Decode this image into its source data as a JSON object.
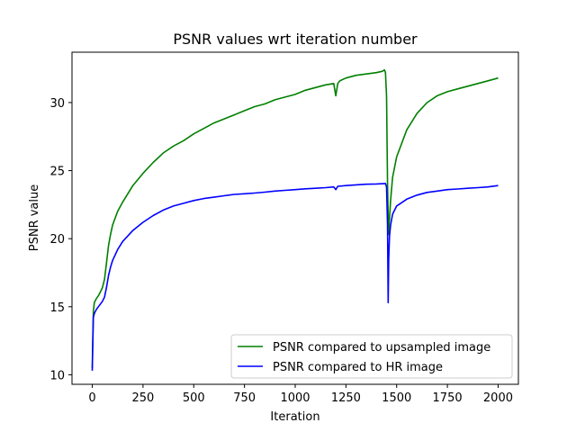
{
  "chart_data": {
    "type": "line",
    "title": "PSNR values wrt iteration number",
    "xlabel": "Iteration",
    "ylabel": "PSNR value",
    "xlim": [
      -100,
      2100
    ],
    "ylim": [
      9.3,
      33.7
    ],
    "xticks": [
      0,
      250,
      500,
      750,
      1000,
      1250,
      1500,
      1750,
      2000
    ],
    "yticks": [
      10,
      15,
      20,
      25,
      30
    ],
    "grid": false,
    "legend_position": "lower right",
    "series": [
      {
        "name": "PSNR compared to upsampled image",
        "color": "#008000",
        "x": [
          0,
          5,
          10,
          20,
          30,
          40,
          50,
          60,
          70,
          80,
          90,
          100,
          125,
          150,
          175,
          200,
          250,
          300,
          350,
          400,
          450,
          500,
          550,
          600,
          650,
          700,
          750,
          800,
          850,
          900,
          950,
          1000,
          1050,
          1100,
          1150,
          1190,
          1200,
          1210,
          1220,
          1250,
          1300,
          1350,
          1400,
          1430,
          1440,
          1445,
          1450,
          1455,
          1460,
          1470,
          1480,
          1500,
          1550,
          1600,
          1650,
          1700,
          1750,
          1800,
          1850,
          1900,
          1950,
          2000
        ],
        "values": [
          10.5,
          14.6,
          15.3,
          15.6,
          15.8,
          16.1,
          16.4,
          17.0,
          18.2,
          19.5,
          20.3,
          21.0,
          22.0,
          22.7,
          23.3,
          23.9,
          24.8,
          25.6,
          26.3,
          26.8,
          27.2,
          27.7,
          28.1,
          28.5,
          28.8,
          29.1,
          29.4,
          29.7,
          29.9,
          30.2,
          30.4,
          30.6,
          30.9,
          31.1,
          31.3,
          31.4,
          30.5,
          31.4,
          31.6,
          31.8,
          32.0,
          32.1,
          32.2,
          32.3,
          32.4,
          32.2,
          30.5,
          24.0,
          20.3,
          22.8,
          24.5,
          26.0,
          28.0,
          29.2,
          30.0,
          30.5,
          30.8,
          31.0,
          31.2,
          31.4,
          31.6,
          31.8
        ]
      },
      {
        "name": "PSNR compared to HR image",
        "color": "#0000ff",
        "x": [
          0,
          5,
          10,
          20,
          30,
          40,
          50,
          60,
          70,
          80,
          90,
          100,
          125,
          150,
          175,
          200,
          250,
          300,
          350,
          400,
          450,
          500,
          550,
          600,
          650,
          700,
          750,
          800,
          850,
          900,
          950,
          1000,
          1050,
          1100,
          1150,
          1190,
          1200,
          1210,
          1250,
          1300,
          1350,
          1400,
          1445,
          1450,
          1455,
          1458,
          1461,
          1465,
          1470,
          1480,
          1500,
          1550,
          1600,
          1650,
          1700,
          1750,
          1800,
          1850,
          1900,
          1950,
          2000
        ],
        "values": [
          10.3,
          14.2,
          14.5,
          14.8,
          15.0,
          15.2,
          15.4,
          15.7,
          16.4,
          17.3,
          17.9,
          18.4,
          19.2,
          19.8,
          20.2,
          20.6,
          21.2,
          21.7,
          22.1,
          22.4,
          22.6,
          22.8,
          22.95,
          23.05,
          23.15,
          23.25,
          23.3,
          23.35,
          23.42,
          23.5,
          23.55,
          23.6,
          23.66,
          23.7,
          23.75,
          23.8,
          23.6,
          23.85,
          23.9,
          23.95,
          24.0,
          24.02,
          24.05,
          23.8,
          21.0,
          15.3,
          18.5,
          20.2,
          21.0,
          21.8,
          22.4,
          22.9,
          23.2,
          23.4,
          23.5,
          23.6,
          23.65,
          23.7,
          23.75,
          23.8,
          23.9
        ]
      }
    ]
  }
}
